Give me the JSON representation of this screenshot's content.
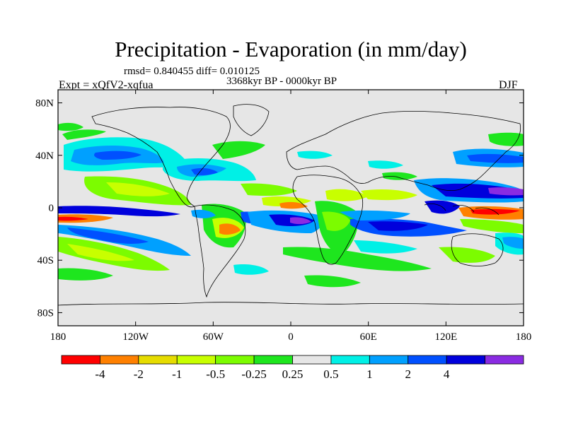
{
  "title": "Precipitation - Evaporation (in mm/day)",
  "stats": "rmsd= 0.840455 diff= 0.010125",
  "period": "3368kyr BP - 0000kyr BP",
  "experiment": "Expt = xQfV2-xqfua",
  "season": "DJF",
  "map": {
    "lat_labels": [
      "80N",
      "40N",
      "0",
      "40S",
      "80S"
    ],
    "lat_values": [
      80,
      40,
      0,
      -40,
      -80
    ],
    "lon_labels": [
      "180",
      "120W",
      "60W",
      "0",
      "60E",
      "120E",
      "180"
    ],
    "lon_values": [
      -180,
      -120,
      -60,
      0,
      60,
      120,
      180
    ],
    "lat_range": [
      -90,
      90
    ],
    "lon_range": [
      -180,
      180
    ],
    "background_color": "#e6e6e6",
    "coastline_color": "#000000"
  },
  "colorbar": {
    "labels": [
      "-4",
      "-2",
      "-1",
      "-0.5",
      "-0.25",
      "0.25",
      "0.5",
      "1",
      "2",
      "4"
    ],
    "colors": [
      "#ff0000",
      "#ff8000",
      "#e6dc00",
      "#c8ff00",
      "#7cfc00",
      "#1ee61e",
      "#e6e6e6",
      "#00f0e6",
      "#00a0ff",
      "#0050ff",
      "#0000dc",
      "#8a2be2"
    ]
  }
}
